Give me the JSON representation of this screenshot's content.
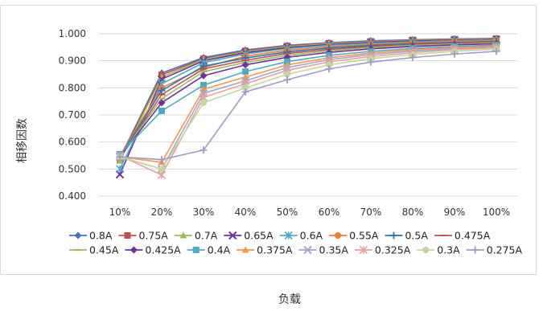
{
  "chart_data": {
    "type": "line",
    "title": "",
    "xlabel": "负载",
    "ylabel": "相移因数",
    "categories": [
      "10%",
      "20%",
      "30%",
      "40%",
      "50%",
      "60%",
      "70%",
      "80%",
      "90%",
      "100%"
    ],
    "ylim": [
      0.4,
      1.0
    ],
    "yticks": [
      "0.400",
      "0.500",
      "0.600",
      "0.700",
      "0.800",
      "0.900",
      "1.000"
    ],
    "grid": true,
    "legend_position": "bottom",
    "series": [
      {
        "name": "0.8A",
        "color": "#4472C4",
        "marker": "diamond",
        "values": [
          0.54,
          0.855,
          0.912,
          0.94,
          0.957,
          0.967,
          0.974,
          0.978,
          0.981,
          0.983
        ]
      },
      {
        "name": "0.75A",
        "color": "#C0504D",
        "marker": "square",
        "values": [
          0.535,
          0.848,
          0.908,
          0.937,
          0.955,
          0.965,
          0.972,
          0.977,
          0.98,
          0.982
        ]
      },
      {
        "name": "0.7A",
        "color": "#9BBB59",
        "marker": "triangle",
        "values": [
          0.53,
          0.84,
          0.905,
          0.934,
          0.952,
          0.963,
          0.97,
          0.975,
          0.978,
          0.98
        ]
      },
      {
        "name": "0.65A",
        "color": "#7030A0",
        "marker": "x",
        "values": [
          0.48,
          0.832,
          0.9,
          0.93,
          0.949,
          0.96,
          0.968,
          0.973,
          0.976,
          0.978
        ]
      },
      {
        "name": "0.6A",
        "color": "#4BACC6",
        "marker": "star",
        "values": [
          0.5,
          0.815,
          0.893,
          0.925,
          0.945,
          0.957,
          0.965,
          0.97,
          0.974,
          0.976
        ]
      },
      {
        "name": "0.55A",
        "color": "#ED7D31",
        "marker": "circle",
        "values": [
          0.55,
          0.8,
          0.875,
          0.917,
          0.939,
          0.952,
          0.961,
          0.967,
          0.971,
          0.974
        ]
      },
      {
        "name": "0.5A",
        "color": "#2E75B6",
        "marker": "plus",
        "values": [
          0.545,
          0.79,
          0.88,
          0.91,
          0.933,
          0.947,
          0.957,
          0.963,
          0.968,
          0.971
        ]
      },
      {
        "name": "0.475A",
        "color": "#C0504D",
        "marker": "dash",
        "values": [
          0.54,
          0.775,
          0.87,
          0.902,
          0.927,
          0.942,
          0.953,
          0.96,
          0.965,
          0.969
        ]
      },
      {
        "name": "0.45A",
        "color": "#9BBB59",
        "marker": "dash",
        "values": [
          0.545,
          0.76,
          0.86,
          0.894,
          0.92,
          0.937,
          0.949,
          0.957,
          0.962,
          0.966
        ]
      },
      {
        "name": "0.425A",
        "color": "#7030A0",
        "marker": "diamond",
        "values": [
          0.545,
          0.745,
          0.845,
          0.885,
          0.913,
          0.931,
          0.944,
          0.953,
          0.959,
          0.963
        ]
      },
      {
        "name": "0.4A",
        "color": "#4BACC6",
        "marker": "square",
        "values": [
          0.555,
          0.715,
          0.81,
          0.86,
          0.897,
          0.92,
          0.935,
          0.946,
          0.953,
          0.958
        ]
      },
      {
        "name": "0.375A",
        "color": "#F79646",
        "marker": "triangle",
        "values": [
          0.545,
          0.525,
          0.795,
          0.84,
          0.885,
          0.911,
          0.929,
          0.941,
          0.949,
          0.955
        ]
      },
      {
        "name": "0.35A",
        "color": "#A5A5C9",
        "marker": "x",
        "values": [
          0.545,
          0.5,
          0.78,
          0.826,
          0.875,
          0.904,
          0.923,
          0.936,
          0.945,
          0.951
        ]
      },
      {
        "name": "0.325A",
        "color": "#E6A0A0",
        "marker": "star",
        "values": [
          0.55,
          0.478,
          0.765,
          0.815,
          0.865,
          0.896,
          0.916,
          0.93,
          0.941,
          0.948
        ]
      },
      {
        "name": "0.3A",
        "color": "#C4D79B",
        "marker": "circle",
        "values": [
          0.545,
          0.5,
          0.745,
          0.8,
          0.85,
          0.885,
          0.908,
          0.923,
          0.935,
          0.943
        ]
      },
      {
        "name": "0.275A",
        "color": "#A29BC7",
        "marker": "plus",
        "values": [
          0.545,
          0.535,
          0.57,
          0.785,
          0.83,
          0.87,
          0.895,
          0.912,
          0.925,
          0.935
        ]
      }
    ]
  }
}
